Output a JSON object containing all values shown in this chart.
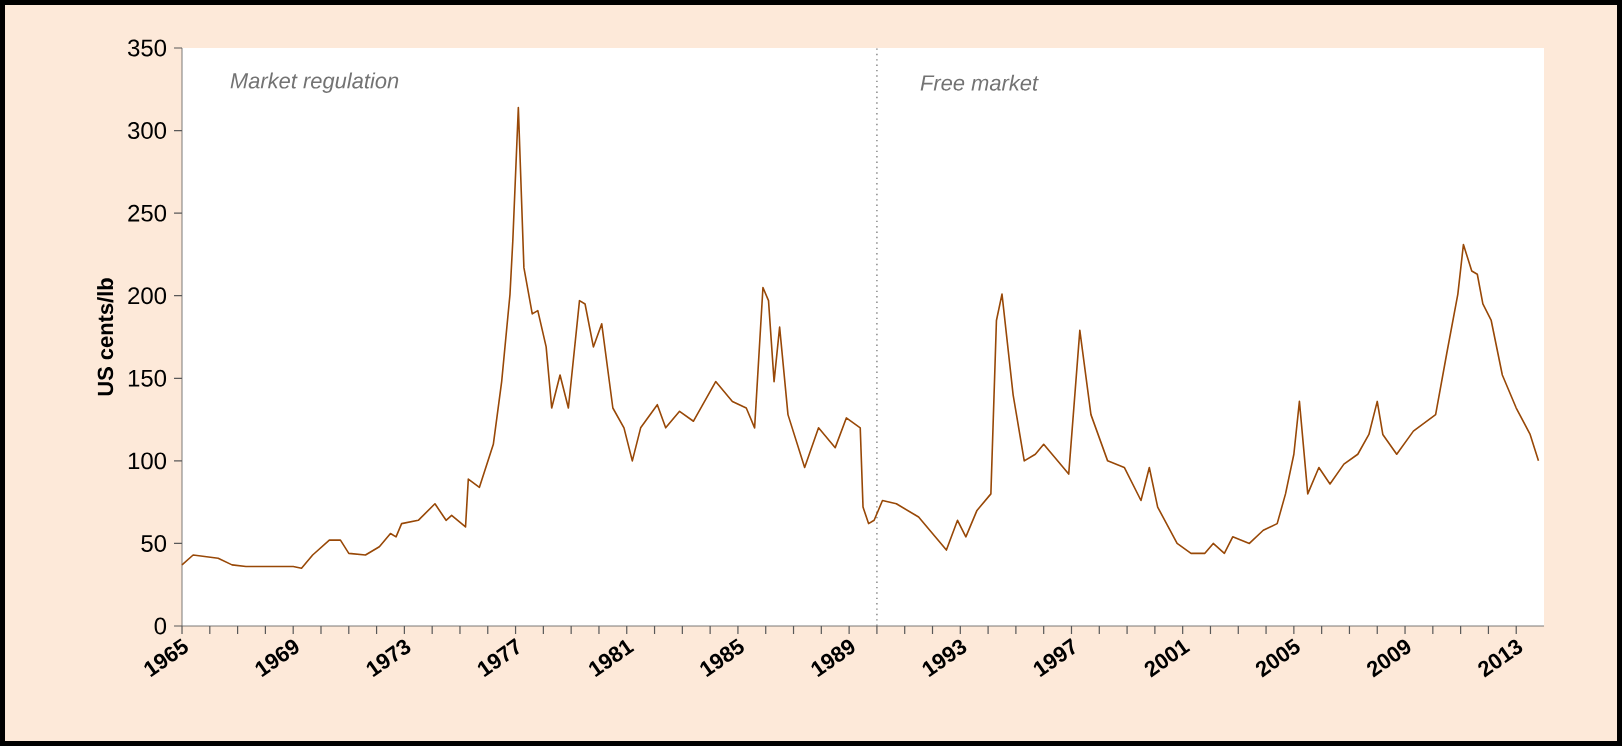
{
  "chart_data": {
    "type": "line",
    "ylabel": "US cents/lb",
    "x": [
      1965.0,
      1965.4,
      1966.3,
      1966.8,
      1967.3,
      1969.0,
      1969.3,
      1969.7,
      1970.3,
      1970.7,
      1971.0,
      1971.6,
      1972.1,
      1972.5,
      1972.7,
      1972.9,
      1973.5,
      1974.1,
      1974.5,
      1974.7,
      1975.2,
      1975.3,
      1975.7,
      1976.2,
      1976.5,
      1976.8,
      1976.9,
      1977.1,
      1977.3,
      1977.6,
      1977.8,
      1978.1,
      1978.3,
      1978.6,
      1978.9,
      1979.3,
      1979.5,
      1979.8,
      1980.1,
      1980.5,
      1980.9,
      1981.2,
      1981.5,
      1982.1,
      1982.4,
      1982.9,
      1983.4,
      1984.2,
      1984.8,
      1985.3,
      1985.6,
      1985.9,
      1986.1,
      1986.3,
      1986.5,
      1986.8,
      1987.4,
      1987.9,
      1988.5,
      1988.9,
      1989.4,
      1989.5,
      1989.7,
      1989.9,
      1990.2,
      1990.7,
      1991.5,
      1992.0,
      1992.5,
      1992.9,
      1993.2,
      1993.6,
      1994.1,
      1994.3,
      1994.5,
      1994.9,
      1995.3,
      1995.7,
      1996.0,
      1996.5,
      1996.9,
      1997.3,
      1997.7,
      1998.3,
      1998.9,
      1999.5,
      1999.8,
      2000.1,
      2000.8,
      2001.3,
      2001.8,
      2002.1,
      2002.5,
      2002.8,
      2003.4,
      2003.9,
      2004.4,
      2004.7,
      2005.0,
      2005.2,
      2005.5,
      2005.9,
      2006.3,
      2006.8,
      2007.3,
      2007.7,
      2008.0,
      2008.2,
      2008.7,
      2009.3,
      2010.1,
      2010.5,
      2010.9,
      2011.1,
      2011.4,
      2011.6,
      2011.8,
      2012.1,
      2012.5,
      2013.0,
      2013.5,
      2013.8
    ],
    "series": [
      {
        "color": "#984807",
        "values": [
          37,
          43,
          41,
          37,
          36,
          36,
          35,
          43,
          52,
          52,
          44,
          43,
          48,
          56,
          54,
          62,
          64,
          74,
          64,
          67,
          60,
          89,
          84,
          110,
          148,
          201,
          233,
          314,
          217,
          189,
          191,
          169,
          132,
          152,
          132,
          197,
          195,
          169,
          183,
          132,
          120,
          100,
          120,
          134,
          120,
          130,
          124,
          148,
          136,
          132,
          120,
          205,
          197,
          148,
          181,
          128,
          96,
          120,
          108,
          126,
          120,
          72,
          62,
          64,
          76,
          74,
          66,
          56,
          46,
          64,
          54,
          70,
          80,
          185,
          201,
          140,
          100,
          104,
          110,
          100,
          92,
          179,
          128,
          100,
          96,
          76,
          96,
          72,
          50,
          44,
          44,
          50,
          44,
          54,
          50,
          58,
          62,
          80,
          104,
          136,
          80,
          96,
          86,
          98,
          104,
          116,
          136,
          116,
          104,
          118,
          128,
          165,
          201,
          231,
          215,
          213,
          195,
          185,
          152,
          132,
          116,
          100
        ]
      }
    ],
    "xlim": [
      1965,
      2014
    ],
    "ylim": [
      0,
      350
    ],
    "xticks": [
      1965,
      {
        "value": 1966,
        "label": null
      },
      {
        "value": 1967,
        "label": null
      },
      {
        "value": 1968,
        "label": null
      },
      1969,
      {
        "value": 1970,
        "label": null
      },
      {
        "value": 1971,
        "label": null
      },
      {
        "value": 1972,
        "label": null
      },
      1973,
      {
        "value": 1974,
        "label": null
      },
      {
        "value": 1975,
        "label": null
      },
      {
        "value": 1976,
        "label": null
      },
      1977,
      {
        "value": 1978,
        "label": null
      },
      {
        "value": 1979,
        "label": null
      },
      {
        "value": 1980,
        "label": null
      },
      1981,
      {
        "value": 1982,
        "label": null
      },
      {
        "value": 1983,
        "label": null
      },
      {
        "value": 1984,
        "label": null
      },
      1985,
      {
        "value": 1986,
        "label": null
      },
      {
        "value": 1987,
        "label": null
      },
      {
        "value": 1988,
        "label": null
      },
      1989,
      {
        "value": 1990,
        "label": null
      },
      {
        "value": 1991,
        "label": null
      },
      {
        "value": 1992,
        "label": null
      },
      1993,
      {
        "value": 1994,
        "label": null
      },
      {
        "value": 1995,
        "label": null
      },
      {
        "value": 1996,
        "label": null
      },
      1997,
      {
        "value": 1998,
        "label": null
      },
      {
        "value": 1999,
        "label": null
      },
      {
        "value": 2000,
        "label": null
      },
      2001,
      {
        "value": 2002,
        "label": null
      },
      {
        "value": 2003,
        "label": null
      },
      {
        "value": 2004,
        "label": null
      },
      2005,
      {
        "value": 2006,
        "label": null
      },
      {
        "value": 2007,
        "label": null
      },
      {
        "value": 2008,
        "label": null
      },
      2009,
      {
        "value": 2010,
        "label": null
      },
      {
        "value": 2011,
        "label": null
      },
      {
        "value": 2012,
        "label": null
      },
      2013
    ],
    "yticks": [
      0,
      50,
      100,
      150,
      200,
      250,
      300,
      350
    ],
    "ref_lines": [
      {
        "axis": "x",
        "value": 1990,
        "color": "#808080",
        "line_style": "dotted"
      }
    ],
    "annotations": [
      "Market regulation",
      "Free market"
    ],
    "grid": false,
    "legend": false,
    "marker": "none",
    "line_style": "solid"
  }
}
